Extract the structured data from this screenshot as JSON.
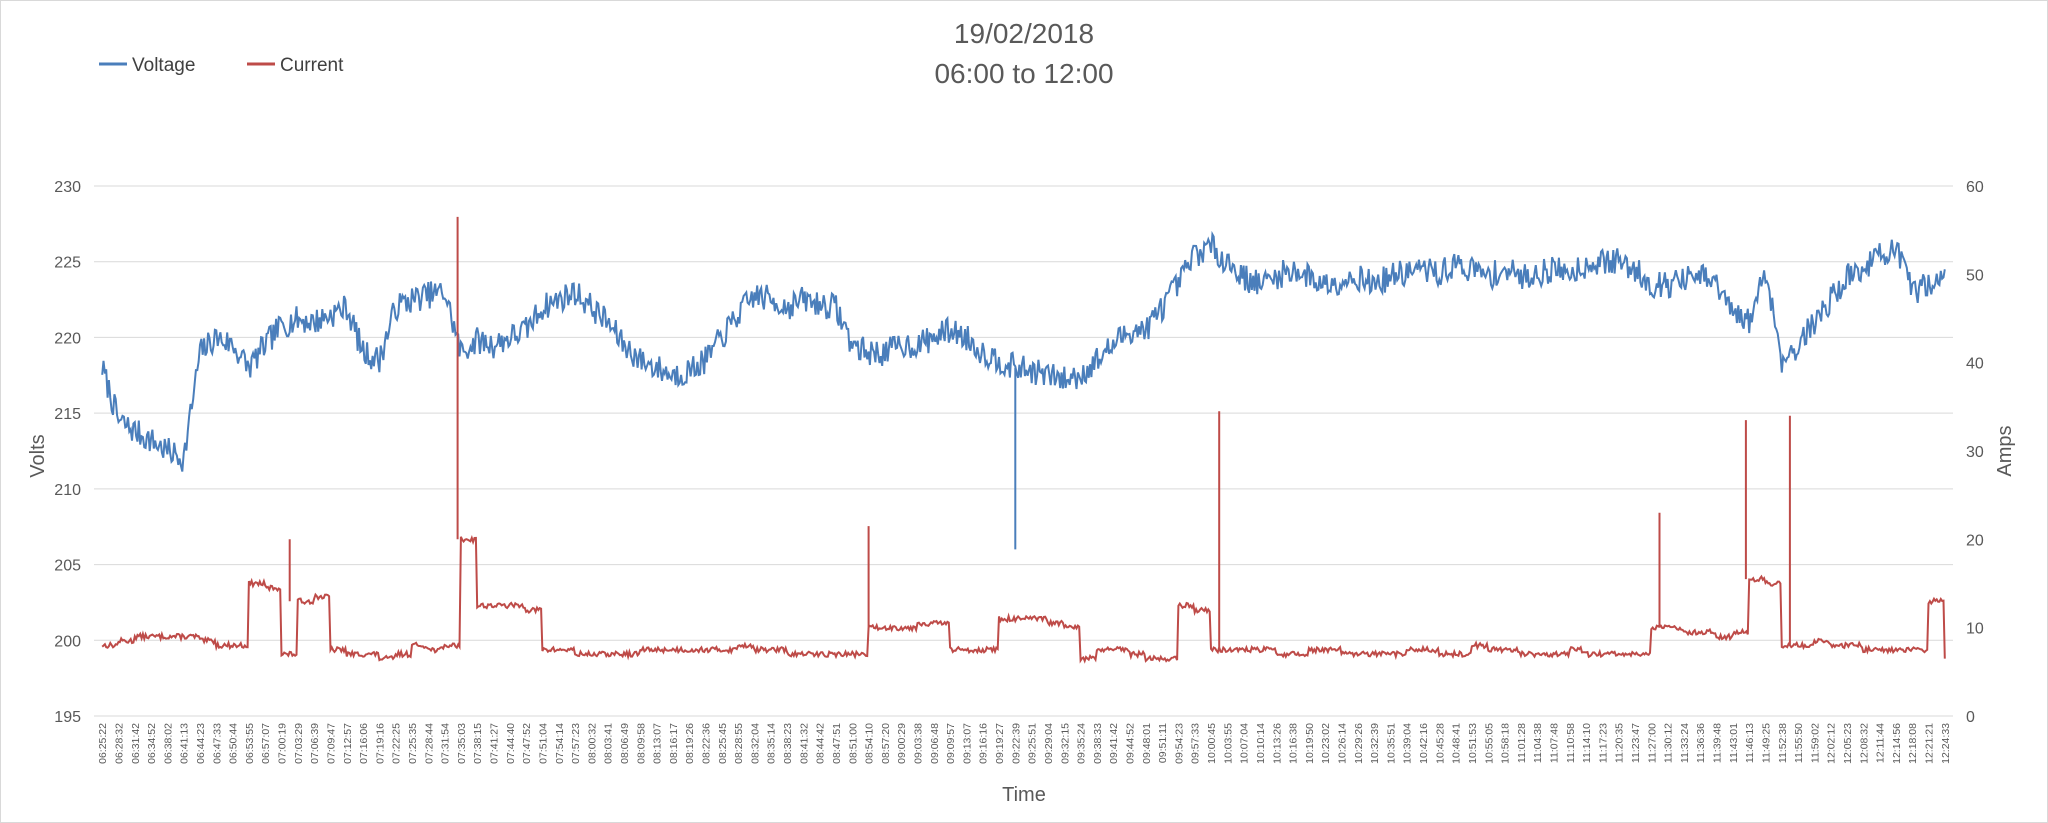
{
  "chart_data": {
    "type": "line",
    "title": "19/02/2018",
    "subtitle": "06:00 to 12:00",
    "xlabel": "Time",
    "ylabel_left": "Volts",
    "ylabel_right": "Amps",
    "ylim_left": [
      195,
      230
    ],
    "yticks_left": [
      "195",
      "200",
      "205",
      "210",
      "215",
      "220",
      "225",
      "230"
    ],
    "ylim_right": [
      0,
      60
    ],
    "yticks_right": [
      "0",
      "10",
      "20",
      "30",
      "40",
      "50",
      "60"
    ],
    "grid": "horizontal",
    "legend_position": "top-left",
    "x_categories": [
      "06:25:22",
      "06:28:32",
      "06:31:42",
      "06:34:52",
      "06:38:02",
      "06:41:13",
      "06:44:23",
      "06:47:33",
      "06:50:44",
      "06:53:55",
      "06:57:07",
      "07:00:19",
      "07:03:29",
      "07:06:39",
      "07:09:47",
      "07:12:57",
      "07:16:06",
      "07:19:16",
      "07:22:25",
      "07:25:35",
      "07:28:44",
      "07:31:54",
      "07:35:03",
      "07:38:15",
      "07:41:27",
      "07:44:40",
      "07:47:52",
      "07:51:04",
      "07:54:14",
      "07:57:23",
      "08:00:32",
      "08:03:41",
      "08:06:49",
      "08:09:58",
      "08:13:07",
      "08:16:17",
      "08:19:26",
      "08:22:36",
      "08:25:45",
      "08:28:55",
      "08:32:04",
      "08:35:14",
      "08:38:23",
      "08:41:32",
      "08:44:42",
      "08:47:51",
      "08:51:00",
      "08:54:10",
      "08:57:20",
      "09:00:29",
      "09:03:38",
      "09:06:48",
      "09:09:57",
      "09:13:07",
      "09:16:16",
      "09:19:27",
      "09:22:39",
      "09:25:51",
      "09:29:04",
      "09:32:15",
      "09:35:24",
      "09:38:33",
      "09:41:42",
      "09:44:52",
      "09:48:01",
      "09:51:11",
      "09:54:23",
      "09:57:33",
      "10:00:45",
      "10:03:55",
      "10:07:04",
      "10:10:14",
      "10:13:26",
      "10:16:38",
      "10:19:50",
      "10:23:02",
      "10:26:14",
      "10:29:26",
      "10:32:39",
      "10:35:51",
      "10:39:04",
      "10:42:16",
      "10:45:28",
      "10:48:41",
      "10:51:53",
      "10:55:05",
      "10:58:18",
      "11:01:28",
      "11:04:38",
      "11:07:48",
      "11:10:58",
      "11:14:10",
      "11:17:23",
      "11:20:35",
      "11:23:47",
      "11:27:00",
      "11:30:12",
      "11:33:24",
      "11:36:36",
      "11:39:48",
      "11:43:01",
      "11:46:13",
      "11:49:25",
      "11:52:38",
      "11:55:50",
      "11:59:02",
      "12:02:12",
      "12:05:23",
      "12:08:32",
      "12:11:44",
      "12:14:56",
      "12:18:08",
      "12:21:21",
      "12:24:33"
    ],
    "series": [
      {
        "name": "Voltage",
        "axis": "left",
        "color": "#4a7ebb",
        "x": [
          0,
          1,
          2,
          3,
          4,
          5,
          6,
          7,
          8,
          9,
          10,
          11,
          12,
          13,
          14,
          15,
          16,
          17,
          18,
          19,
          20,
          21,
          22,
          23,
          24,
          25,
          26,
          27,
          28,
          29,
          30,
          31,
          32,
          33,
          34,
          35,
          36,
          37,
          38,
          39,
          40,
          41,
          42,
          43,
          44,
          45,
          46,
          47,
          48,
          49,
          50,
          51,
          52,
          53,
          54,
          55,
          56,
          57,
          58,
          59,
          60,
          61,
          62,
          63,
          64,
          65,
          66,
          67,
          68,
          69,
          70,
          71,
          72,
          73,
          74,
          75,
          76,
          77,
          78,
          79,
          80,
          81,
          82,
          83,
          84,
          85,
          86,
          87,
          88,
          89,
          90,
          91,
          92,
          93,
          94,
          95,
          96,
          97,
          98,
          99,
          100,
          101,
          102,
          103,
          104,
          105,
          106,
          107,
          108,
          109,
          110,
          111,
          112,
          113
        ],
        "values": [
          218.0,
          214.5,
          213.8,
          213.2,
          212.5,
          212.0,
          219.0,
          220.0,
          219.5,
          218.0,
          219.5,
          220.8,
          221.2,
          221.0,
          221.5,
          222.0,
          219.0,
          218.5,
          222.0,
          222.5,
          222.8,
          223.0,
          219.0,
          219.8,
          219.5,
          220.0,
          220.5,
          222.0,
          222.5,
          223.0,
          222.0,
          221.0,
          219.5,
          218.5,
          218.0,
          217.5,
          217.8,
          218.5,
          220.0,
          221.5,
          222.8,
          222.5,
          222.0,
          222.5,
          222.2,
          222.0,
          219.5,
          219.0,
          219.0,
          219.5,
          219.5,
          220.0,
          220.5,
          220.0,
          219.0,
          218.5,
          218.0,
          217.8,
          217.5,
          217.2,
          217.5,
          218.5,
          219.5,
          220.5,
          220.5,
          222.0,
          223.5,
          225.5,
          226.0,
          225.0,
          224.0,
          223.5,
          224.0,
          224.5,
          224.0,
          223.5,
          223.8,
          224.0,
          223.5,
          224.0,
          224.3,
          224.5,
          224.2,
          224.8,
          224.5,
          224.0,
          224.5,
          224.0,
          224.2,
          224.5,
          224.3,
          224.8,
          225.0,
          225.0,
          224.5,
          223.5,
          223.5,
          223.8,
          224.0,
          223.5,
          221.5,
          221.0,
          224.5,
          218.5,
          219.5,
          221.0,
          222.5,
          224.0,
          224.5,
          225.5,
          225.8,
          223.0,
          223.5,
          224.5
        ],
        "dips": [
          {
            "x": 56.0,
            "min": 206.0
          }
        ]
      },
      {
        "name": "Current",
        "axis": "right",
        "color": "#be4b48",
        "x": [
          0,
          1,
          2,
          3,
          4,
          5,
          6,
          7,
          8,
          9,
          10,
          11,
          12,
          13,
          14,
          15,
          16,
          17,
          18,
          19,
          20,
          21,
          22,
          23,
          24,
          25,
          26,
          27,
          28,
          29,
          30,
          31,
          32,
          33,
          34,
          35,
          36,
          37,
          38,
          39,
          40,
          41,
          42,
          43,
          44,
          45,
          46,
          47,
          48,
          49,
          50,
          51,
          52,
          53,
          54,
          55,
          56,
          57,
          58,
          59,
          60,
          61,
          62,
          63,
          64,
          65,
          66,
          67,
          68,
          69,
          70,
          71,
          72,
          73,
          74,
          75,
          76,
          77,
          78,
          79,
          80,
          81,
          82,
          83,
          84,
          85,
          86,
          87,
          88,
          89,
          90,
          91,
          92,
          93,
          94,
          95,
          96,
          97,
          98,
          99,
          100,
          101,
          102,
          103,
          104,
          105,
          106,
          107,
          108,
          109,
          110,
          111,
          112,
          113
        ],
        "values": [
          8.0,
          8.5,
          9.0,
          9.0,
          9.0,
          9.0,
          8.5,
          8.0,
          8.0,
          15.0,
          14.5,
          7.0,
          13.0,
          13.5,
          7.5,
          7.0,
          7.0,
          6.5,
          7.0,
          8.0,
          7.5,
          8.0,
          20.0,
          12.5,
          12.5,
          12.5,
          12.0,
          7.5,
          7.5,
          7.0,
          7.0,
          7.0,
          7.0,
          7.5,
          7.5,
          7.5,
          7.5,
          7.5,
          7.5,
          8.0,
          7.5,
          7.5,
          7.0,
          7.0,
          7.0,
          7.0,
          7.0,
          10.0,
          10.0,
          10.0,
          10.5,
          10.5,
          7.5,
          7.5,
          7.5,
          11.0,
          11.0,
          11.0,
          10.5,
          10.0,
          6.5,
          7.5,
          7.5,
          7.0,
          6.5,
          6.5,
          12.5,
          12.0,
          7.5,
          7.5,
          7.5,
          7.5,
          7.0,
          7.0,
          7.5,
          7.5,
          7.0,
          7.0,
          7.0,
          7.0,
          7.5,
          7.5,
          7.0,
          7.0,
          8.0,
          7.5,
          7.5,
          7.0,
          7.0,
          7.0,
          7.5,
          7.0,
          7.0,
          7.0,
          7.0,
          10.0,
          10.0,
          9.5,
          9.5,
          9.0,
          9.5,
          15.5,
          15.0,
          8.0,
          8.0,
          8.5,
          8.0,
          8.0,
          7.5,
          7.5,
          7.5,
          7.5,
          13.0,
          6.5
        ],
        "spikes": [
          {
            "x": 21.8,
            "max": 56.5
          },
          {
            "x": 68.5,
            "max": 34.5
          },
          {
            "x": 100.8,
            "max": 33.5
          },
          {
            "x": 103.5,
            "max": 34.0
          },
          {
            "x": 47.0,
            "max": 21.5
          },
          {
            "x": 95.5,
            "max": 23.0
          },
          {
            "x": 11.5,
            "max": 20.0
          }
        ]
      }
    ]
  }
}
